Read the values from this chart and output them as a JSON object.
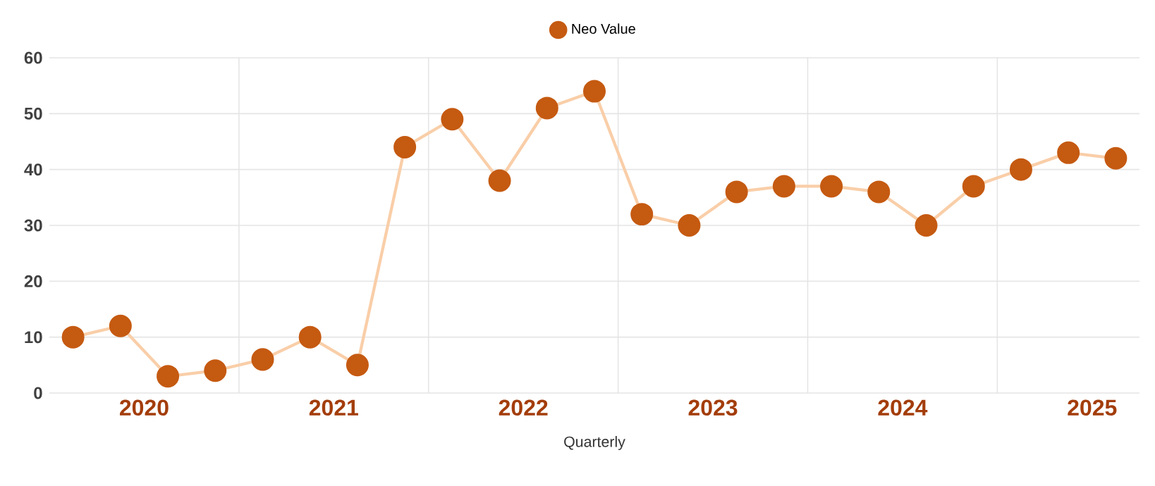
{
  "chart_data": {
    "type": "line",
    "xlabel": "Quarterly",
    "x": [
      2020.125,
      2020.375,
      2020.625,
      2020.875,
      2021.125,
      2021.375,
      2021.625,
      2021.875,
      2022.125,
      2022.375,
      2022.625,
      2022.875,
      2023.125,
      2023.375,
      2023.625,
      2023.875,
      2024.125,
      2024.375,
      2024.625,
      2024.875,
      2025.125,
      2025.375,
      2025.625
    ],
    "series": [
      {
        "name": "Neo Value",
        "color": "#c55a11",
        "values": [
          10,
          12,
          3,
          4,
          6,
          10,
          5,
          44,
          49,
          38,
          51,
          54,
          32,
          30,
          36,
          37,
          37,
          36,
          30,
          37,
          40,
          43,
          42
        ]
      }
    ],
    "xlim": [
      2020.0,
      2025.75
    ],
    "xticks": [
      {
        "value": 2020.5,
        "label": "2020"
      },
      {
        "value": 2021,
        "label": null
      },
      {
        "value": 2021.5,
        "label": "2021"
      },
      {
        "value": 2022,
        "label": null
      },
      {
        "value": 2022.5,
        "label": "2022"
      },
      {
        "value": 2023,
        "label": null
      },
      {
        "value": 2023.5,
        "label": "2023"
      },
      {
        "value": 2024,
        "label": null
      },
      {
        "value": 2024.5,
        "label": "2024"
      },
      {
        "value": 2025,
        "label": null
      },
      {
        "value": 2025.5,
        "label": "2025"
      }
    ],
    "ylim": [
      0,
      60
    ],
    "yticks": [
      0,
      10,
      20,
      30,
      40,
      50,
      60
    ],
    "grid": true,
    "legend": "top",
    "marker": "circle",
    "line_style": "solid"
  }
}
